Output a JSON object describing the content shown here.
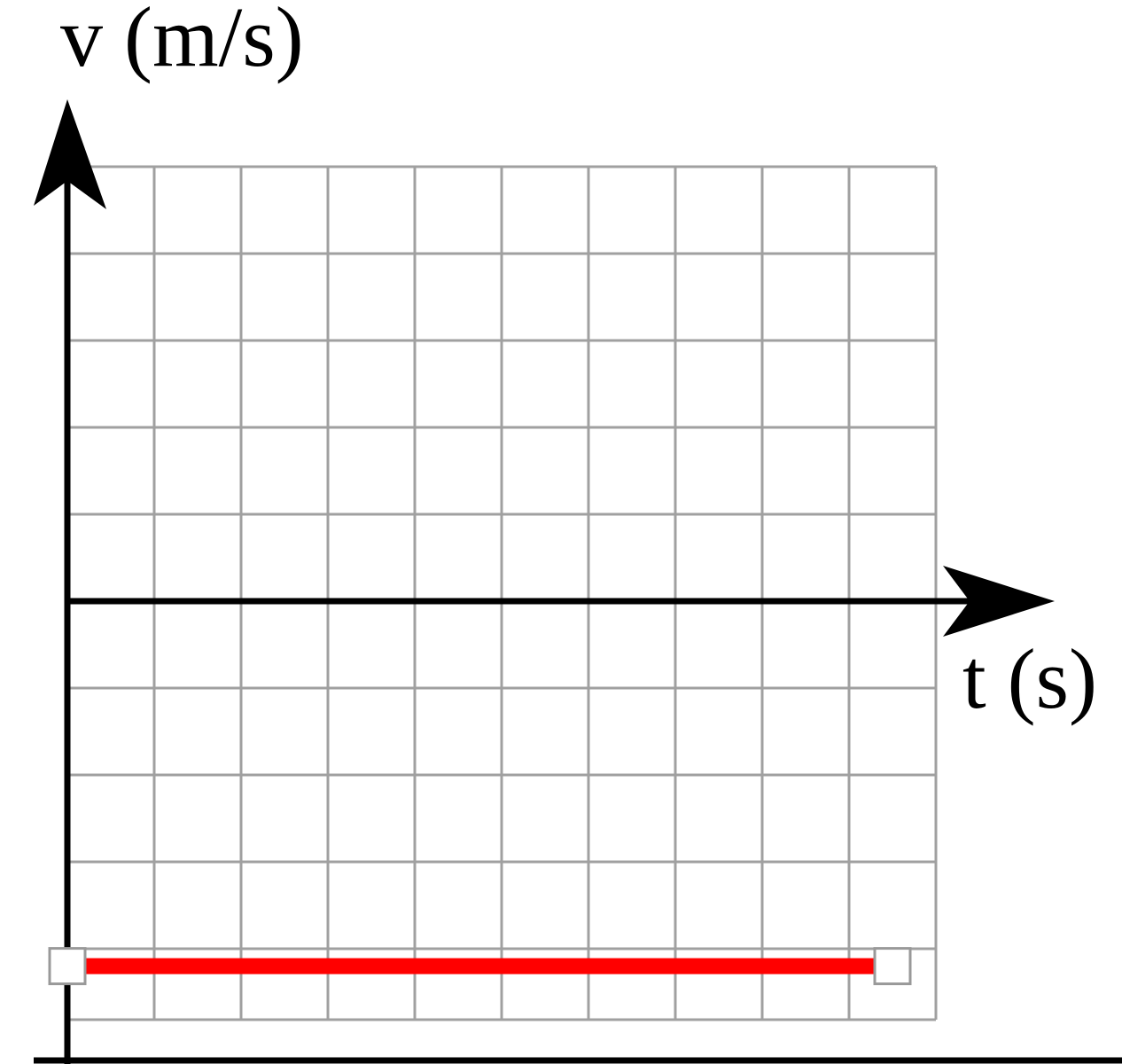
{
  "chart_data": {
    "type": "line",
    "title": "",
    "xlabel": "t (s)",
    "ylabel": "v (m/s)",
    "x_gridlines": 10,
    "y_gridlines_above_axis": 5,
    "y_gridlines_below_axis": 5,
    "grid": true,
    "x_ticks_labeled": false,
    "y_ticks_labeled": false,
    "series": [
      {
        "points": [
          {
            "x": 0,
            "y": -4.2
          },
          {
            "x": 9.5,
            "y": -4.2
          }
        ],
        "color": "#ff0000",
        "draggable_endpoints": true
      }
    ]
  },
  "colors": {
    "grid": "#a0a0a0",
    "axis": "#000000",
    "series": "#ff0000",
    "handle_fill": "#ffffff",
    "handle_stroke": "#999999"
  }
}
